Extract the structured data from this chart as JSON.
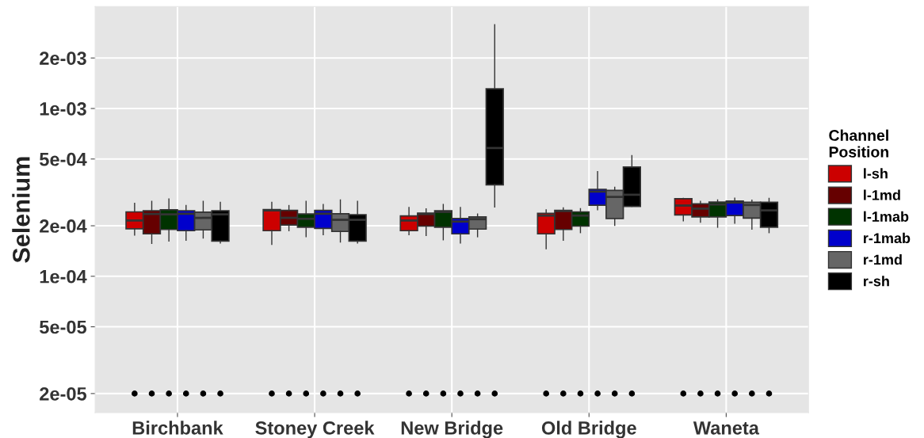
{
  "chart_data": {
    "type": "box",
    "ylabel": "Selenium",
    "legend_title": "Channel\nPosition",
    "legend": "right",
    "grid": true,
    "log": "y",
    "categories": [
      "Birchbank",
      "Stoney Creek",
      "New Bridge",
      "Old Bridge",
      "Waneta"
    ],
    "ylim": [
      1.54e-05,
      0.00405
    ],
    "yticks": [
      {
        "value": 2e-05,
        "label": "2e-05"
      },
      {
        "value": 5e-05,
        "label": "5e-05"
      },
      {
        "value": 0.0001,
        "label": "1e-04"
      },
      {
        "value": 0.0002,
        "label": "2e-04"
      },
      {
        "value": 0.0005,
        "label": "5e-04"
      },
      {
        "value": 0.001,
        "label": "1e-03"
      },
      {
        "value": 0.002,
        "label": "2e-03"
      }
    ],
    "series": [
      {
        "name": "l-sh",
        "color": "#cc0000",
        "boxes": [
          {
            "low": 0.000176,
            "q1": 0.000192,
            "median": 0.000215,
            "q3": 0.000242,
            "high": 0.000272,
            "outliers": [
              2e-05
            ]
          },
          {
            "low": 0.000155,
            "q1": 0.000187,
            "median": 0.000247,
            "q3": 0.00025,
            "high": 0.000276,
            "outliers": [
              2e-05
            ]
          },
          {
            "low": 0.000177,
            "q1": 0.000187,
            "median": 0.000215,
            "q3": 0.000229,
            "high": 0.000257,
            "outliers": [
              2e-05
            ]
          },
          {
            "low": 0.000146,
            "q1": 0.000179,
            "median": 0.00023,
            "q3": 0.000237,
            "high": 0.000249,
            "outliers": [
              2e-05
            ]
          },
          {
            "low": 0.000214,
            "q1": 0.000232,
            "median": 0.000264,
            "q3": 0.00029,
            "high": 0.000291,
            "outliers": [
              2e-05
            ]
          }
        ]
      },
      {
        "name": "l-1md",
        "color": "#660000",
        "boxes": [
          {
            "low": 0.000157,
            "q1": 0.000179,
            "median": 0.000235,
            "q3": 0.000246,
            "high": 0.00028,
            "outliers": [
              2e-05
            ]
          },
          {
            "low": 0.000187,
            "q1": 0.000202,
            "median": 0.000223,
            "q3": 0.000247,
            "high": 0.000264,
            "outliers": [
              2e-05
            ]
          },
          {
            "low": 0.000175,
            "q1": 0.000199,
            "median": 0.000235,
            "q3": 0.000238,
            "high": 0.000252,
            "outliers": [
              2e-05
            ]
          },
          {
            "low": 0.000164,
            "q1": 0.00019,
            "median": 0.000245,
            "q3": 0.000247,
            "high": 0.000256,
            "outliers": [
              2e-05
            ]
          },
          {
            "low": 0.00021,
            "q1": 0.000226,
            "median": 0.000253,
            "q3": 0.00027,
            "high": 0.00028,
            "outliers": [
              2e-05
            ]
          }
        ]
      },
      {
        "name": "l-1mab",
        "color": "#003300",
        "boxes": [
          {
            "low": 0.000162,
            "q1": 0.00019,
            "median": 0.000234,
            "q3": 0.000249,
            "high": 0.000289,
            "outliers": [
              2e-05
            ]
          },
          {
            "low": 0.000172,
            "q1": 0.000196,
            "median": 0.00022,
            "q3": 0.000235,
            "high": 0.00028,
            "outliers": [
              2e-05
            ]
          },
          {
            "low": 0.000165,
            "q1": 0.000196,
            "median": 0.000242,
            "q3": 0.000246,
            "high": 0.000268,
            "outliers": [
              2e-05
            ]
          },
          {
            "low": 0.000182,
            "q1": 0.000199,
            "median": 0.00023,
            "q3": 0.000242,
            "high": 0.000253,
            "outliers": [
              2e-05
            ]
          },
          {
            "low": 0.000196,
            "q1": 0.000226,
            "median": 0.000268,
            "q3": 0.000277,
            "high": 0.000285,
            "outliers": [
              2e-05
            ]
          }
        ]
      },
      {
        "name": "r-1mab",
        "color": "#0000cc",
        "boxes": [
          {
            "low": 0.000164,
            "q1": 0.000187,
            "median": 0.000236,
            "q3": 0.000246,
            "high": 0.000264,
            "outliers": [
              2e-05
            ]
          },
          {
            "low": 0.000177,
            "q1": 0.000193,
            "median": 0.000236,
            "q3": 0.000247,
            "high": 0.000268,
            "outliers": [
              2e-05
            ]
          },
          {
            "low": 0.000158,
            "q1": 0.000179,
            "median": 0.000212,
            "q3": 0.000221,
            "high": 0.000257,
            "outliers": [
              2e-05
            ]
          },
          {
            "low": 0.000249,
            "q1": 0.000265,
            "median": 0.00032,
            "q3": 0.00033,
            "high": 0.00042,
            "outliers": [
              2e-05
            ]
          },
          {
            "low": 0.000207,
            "q1": 0.00023,
            "median": 0.000275,
            "q3": 0.000281,
            "high": 0.000292,
            "outliers": [
              2e-05
            ]
          }
        ]
      },
      {
        "name": "r-1md",
        "color": "#666666",
        "boxes": [
          {
            "low": 0.000169,
            "q1": 0.000189,
            "median": 0.000223,
            "q3": 0.000241,
            "high": 0.00028,
            "outliers": [
              2e-05
            ]
          },
          {
            "low": 0.00016,
            "q1": 0.000185,
            "median": 0.000217,
            "q3": 0.000236,
            "high": 0.000285,
            "outliers": [
              2e-05
            ]
          },
          {
            "low": 0.000172,
            "q1": 0.000191,
            "median": 0.000219,
            "q3": 0.000226,
            "high": 0.000235,
            "outliers": [
              2e-05
            ]
          },
          {
            "low": 0.000201,
            "q1": 0.000221,
            "median": 0.000297,
            "q3": 0.000325,
            "high": 0.000339,
            "outliers": [
              2e-05
            ]
          },
          {
            "low": 0.000191,
            "q1": 0.000222,
            "median": 0.000266,
            "q3": 0.000276,
            "high": 0.000284,
            "outliers": [
              2e-05
            ]
          }
        ]
      },
      {
        "name": "r-sh",
        "color": "#000000",
        "boxes": [
          {
            "low": 0.000158,
            "q1": 0.000162,
            "median": 0.000234,
            "q3": 0.000246,
            "high": 0.000276,
            "outliers": [
              2e-05
            ]
          },
          {
            "low": 0.000158,
            "q1": 0.000162,
            "median": 0.000217,
            "q3": 0.000233,
            "high": 0.00028,
            "outliers": [
              2e-05
            ]
          },
          {
            "low": 0.000259,
            "q1": 0.000351,
            "median": 0.000582,
            "q3": 0.00131,
            "high": 0.00316,
            "outliers": [
              2e-05
            ]
          },
          {
            "low": 0.000261,
            "q1": 0.000261,
            "median": 0.000306,
            "q3": 0.000448,
            "high": 0.000524,
            "outliers": [
              2e-05
            ]
          },
          {
            "low": 0.000182,
            "q1": 0.000196,
            "median": 0.000247,
            "q3": 0.000276,
            "high": 0.000291,
            "outliers": [
              2e-05
            ]
          }
        ]
      }
    ]
  }
}
